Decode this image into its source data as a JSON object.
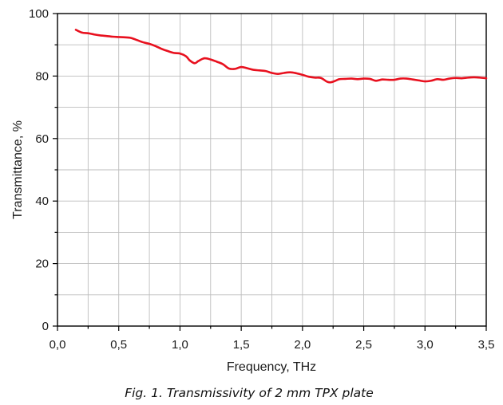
{
  "chart_data": {
    "type": "line",
    "xlabel": "Frequency, THz",
    "ylabel": "Transmittance, %",
    "caption": "Fig. 1. Transmissivity of 2 mm TPX plate",
    "xlim": [
      0,
      3.5
    ],
    "ylim": [
      0,
      100
    ],
    "grid": true,
    "x_ticks": [
      "0,0",
      "0,5",
      "1,0",
      "1,5",
      "2,0",
      "2,5",
      "3,0",
      "3,5"
    ],
    "x_tick_values": [
      0,
      0.5,
      1.0,
      1.5,
      2.0,
      2.5,
      3.0,
      3.5
    ],
    "y_ticks": [
      "0",
      "20",
      "40",
      "60",
      "80",
      "100"
    ],
    "y_tick_values": [
      0,
      20,
      40,
      60,
      80,
      100
    ],
    "line_color": "#e8101e",
    "series": [
      {
        "x": [
          0.15,
          0.2,
          0.25,
          0.3,
          0.35,
          0.4,
          0.45,
          0.5,
          0.55,
          0.6,
          0.65,
          0.7,
          0.75,
          0.8,
          0.85,
          0.9,
          0.95,
          1.0,
          1.05,
          1.08,
          1.12,
          1.15,
          1.2,
          1.25,
          1.3,
          1.35,
          1.4,
          1.45,
          1.5,
          1.55,
          1.6,
          1.65,
          1.7,
          1.75,
          1.8,
          1.85,
          1.9,
          1.95,
          2.0,
          2.05,
          2.1,
          2.15,
          2.2,
          2.23,
          2.27,
          2.3,
          2.35,
          2.4,
          2.45,
          2.5,
          2.55,
          2.6,
          2.65,
          2.7,
          2.75,
          2.8,
          2.85,
          2.9,
          2.95,
          3.0,
          3.05,
          3.1,
          3.15,
          3.2,
          3.25,
          3.3,
          3.35,
          3.4,
          3.45,
          3.5
        ],
        "y": [
          94.8,
          93.9,
          93.7,
          93.3,
          93.0,
          92.8,
          92.6,
          92.5,
          92.4,
          92.2,
          91.5,
          90.8,
          90.3,
          89.6,
          88.7,
          88.0,
          87.4,
          87.2,
          86.3,
          85.0,
          84.1,
          84.8,
          85.7,
          85.3,
          84.6,
          83.8,
          82.4,
          82.3,
          82.9,
          82.5,
          82.0,
          81.8,
          81.6,
          81.0,
          80.7,
          81.0,
          81.2,
          80.9,
          80.4,
          79.8,
          79.5,
          79.4,
          78.2,
          78.0,
          78.5,
          79.0,
          79.1,
          79.2,
          79.0,
          79.2,
          79.1,
          78.5,
          78.9,
          78.8,
          78.8,
          79.2,
          79.2,
          78.9,
          78.6,
          78.3,
          78.5,
          79.0,
          78.8,
          79.2,
          79.4,
          79.3,
          79.5,
          79.6,
          79.5,
          79.3
        ]
      }
    ]
  }
}
